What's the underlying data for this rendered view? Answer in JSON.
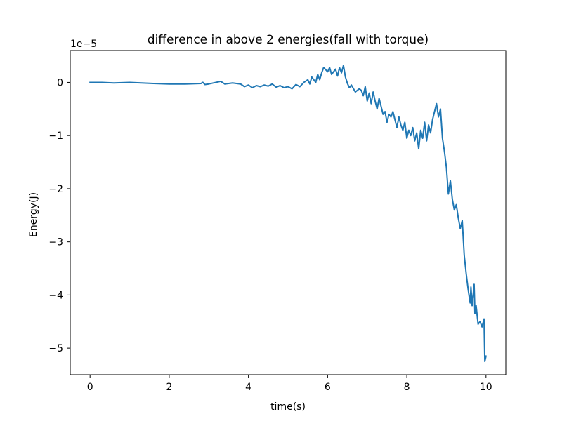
{
  "chart_data": {
    "type": "line",
    "title": "difference in above 2 energies(fall with torque)",
    "xlabel": "time(s)",
    "ylabel": "Energy(J)",
    "y_offset_label": "1e−5",
    "y_scale_factor": 1e-05,
    "xlim": [
      -0.5,
      10.5
    ],
    "ylim": [
      -5.5,
      0.6
    ],
    "x_ticks": [
      0,
      2,
      4,
      6,
      8,
      10
    ],
    "x_tick_labels": [
      "0",
      "2",
      "4",
      "6",
      "8",
      "10"
    ],
    "y_ticks": [
      0,
      -1,
      -2,
      -3,
      -4,
      -5
    ],
    "y_tick_labels": [
      "0",
      "−1",
      "−2",
      "−3",
      "−4",
      "−5"
    ],
    "grid": false,
    "line_color": "#1f77b4",
    "series": [
      {
        "x": [
          0.0,
          0.3,
          0.6,
          1.0,
          1.3,
          1.6,
          2.0,
          2.4,
          2.8,
          2.85,
          2.9,
          3.0,
          3.3,
          3.4,
          3.6,
          3.8,
          3.9,
          4.0,
          4.1,
          4.2,
          4.3,
          4.4,
          4.5,
          4.6,
          4.7,
          4.8,
          4.9,
          5.0,
          5.1,
          5.2,
          5.3,
          5.4,
          5.5,
          5.55,
          5.6,
          5.7,
          5.75,
          5.8,
          5.85,
          5.9,
          6.0,
          6.05,
          6.1,
          6.2,
          6.25,
          6.3,
          6.35,
          6.4,
          6.45,
          6.5,
          6.55,
          6.6,
          6.7,
          6.8,
          6.85,
          6.9,
          6.95,
          7.0,
          7.05,
          7.1,
          7.15,
          7.2,
          7.25,
          7.3,
          7.35,
          7.4,
          7.45,
          7.5,
          7.55,
          7.6,
          7.65,
          7.7,
          7.75,
          7.8,
          7.85,
          7.9,
          7.95,
          8.0,
          8.05,
          8.1,
          8.15,
          8.2,
          8.25,
          8.3,
          8.35,
          8.4,
          8.45,
          8.5,
          8.55,
          8.6,
          8.65,
          8.7,
          8.75,
          8.8,
          8.85,
          8.9,
          8.95,
          9.0,
          9.05,
          9.1,
          9.15,
          9.2,
          9.25,
          9.3,
          9.35,
          9.4,
          9.45,
          9.5,
          9.55,
          9.6,
          9.62,
          9.65,
          9.7,
          9.72,
          9.75,
          9.8,
          9.85,
          9.9,
          9.95,
          9.97,
          10.0
        ],
        "y": [
          0.0,
          0.0,
          -0.01,
          0.0,
          -0.01,
          -0.02,
          -0.03,
          -0.03,
          -0.02,
          0.0,
          -0.04,
          -0.03,
          0.02,
          -0.03,
          -0.01,
          -0.03,
          -0.08,
          -0.05,
          -0.1,
          -0.06,
          -0.08,
          -0.05,
          -0.07,
          -0.03,
          -0.09,
          -0.06,
          -0.1,
          -0.08,
          -0.12,
          -0.04,
          -0.08,
          0.0,
          0.05,
          -0.03,
          0.1,
          0.0,
          0.15,
          0.05,
          0.18,
          0.28,
          0.2,
          0.28,
          0.15,
          0.25,
          0.12,
          0.28,
          0.18,
          0.32,
          0.1,
          -0.02,
          -0.1,
          -0.05,
          -0.18,
          -0.12,
          -0.15,
          -0.25,
          -0.08,
          -0.35,
          -0.2,
          -0.4,
          -0.18,
          -0.35,
          -0.5,
          -0.3,
          -0.45,
          -0.6,
          -0.55,
          -0.75,
          -0.6,
          -0.65,
          -0.55,
          -0.7,
          -0.85,
          -0.65,
          -0.8,
          -0.9,
          -0.75,
          -1.05,
          -0.9,
          -1.0,
          -0.85,
          -1.1,
          -0.95,
          -1.25,
          -0.9,
          -1.05,
          -0.75,
          -1.1,
          -0.8,
          -0.95,
          -0.7,
          -0.55,
          -0.4,
          -0.65,
          -0.5,
          -1.05,
          -1.3,
          -1.6,
          -2.1,
          -1.85,
          -2.2,
          -2.4,
          -2.3,
          -2.55,
          -2.75,
          -2.6,
          -3.25,
          -3.6,
          -3.9,
          -4.15,
          -3.85,
          -4.2,
          -3.8,
          -4.35,
          -4.2,
          -4.55,
          -4.5,
          -4.6,
          -4.45,
          -5.25,
          -5.15
        ]
      }
    ]
  }
}
